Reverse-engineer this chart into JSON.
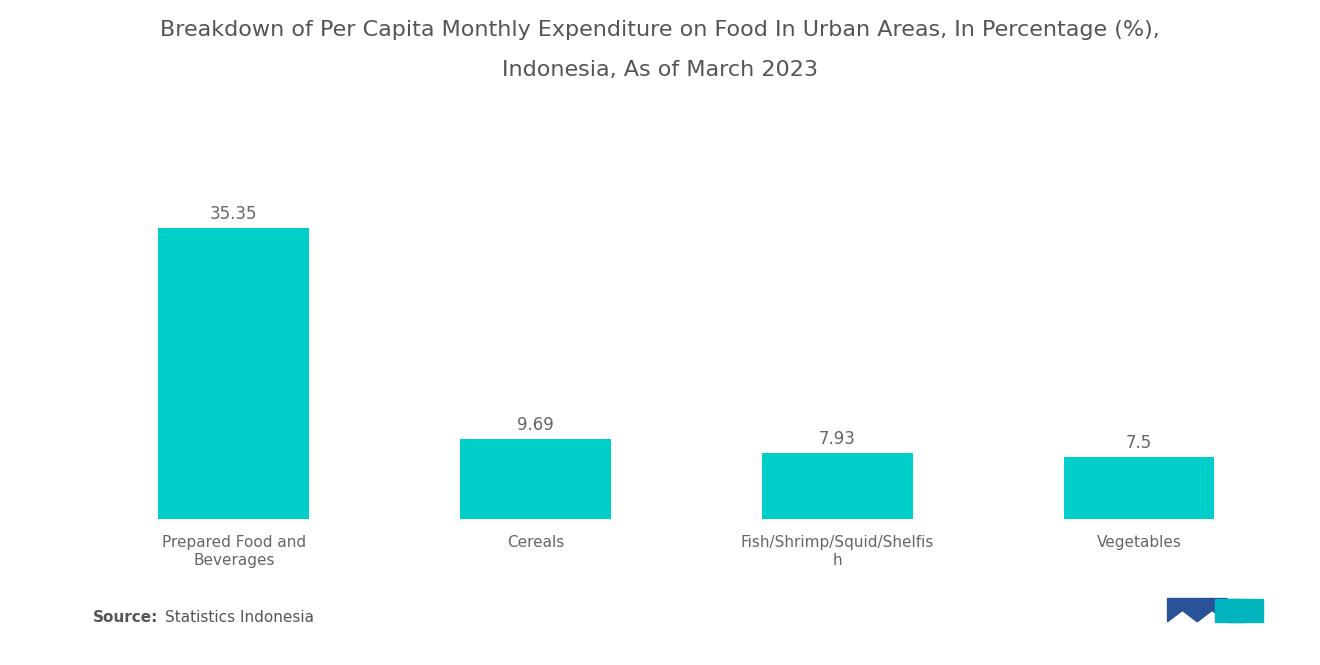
{
  "title_line1": "Breakdown of Per Capita Monthly Expenditure on Food In Urban Areas, In Percentage (%),",
  "title_line2": "Indonesia, As of March 2023",
  "categories": [
    "Prepared Food and\nBeverages",
    "Cereals",
    "Fish/Shrimp/Squid/Shelfis\nh",
    "Vegetables"
  ],
  "values": [
    35.35,
    9.69,
    7.93,
    7.5
  ],
  "bar_color": "#00CEC9",
  "background_color": "#ffffff",
  "title_fontsize": 16,
  "value_fontsize": 12,
  "label_fontsize": 11,
  "source_bold": "Source:",
  "source_normal": "  Statistics Indonesia",
  "ylim": [
    0,
    42
  ],
  "bar_width": 0.5,
  "logo_dark_color": "#2a5298",
  "logo_teal_color": "#00b5bd"
}
